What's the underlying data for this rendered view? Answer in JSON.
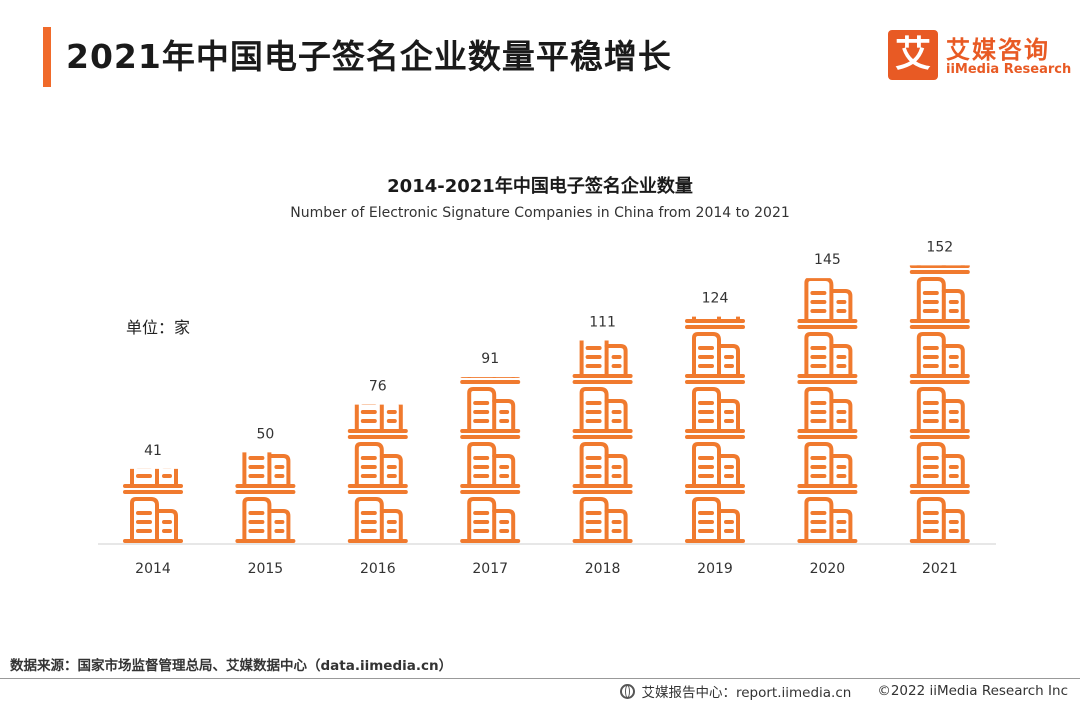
{
  "header": {
    "title": "2021年中国电子签名企业数量平稳增长",
    "logo_mark": "艾",
    "logo_cn": "艾媒咨询",
    "logo_en": "iiMedia Research"
  },
  "chart_data": {
    "type": "bar",
    "title": "2014-2021年中国电子签名企业数量",
    "subtitle": "Number of Electronic Signature Companies in China from 2014 to 2021",
    "unit_label": "单位：家",
    "categories": [
      "2014",
      "2015",
      "2016",
      "2017",
      "2018",
      "2019",
      "2020",
      "2021"
    ],
    "values": [
      41,
      50,
      76,
      91,
      111,
      124,
      145,
      152
    ],
    "bar_style": "stacked building pictograms",
    "color": "#f07a2e",
    "grid": false,
    "legend": "none"
  },
  "footer": {
    "source": "数据来源：国家市场监督管理总局、艾媒数据中心（data.iimedia.cn）",
    "report_site": "艾媒报告中心：report.iimedia.cn",
    "copyright": "©2022  iiMedia Research  Inc"
  }
}
